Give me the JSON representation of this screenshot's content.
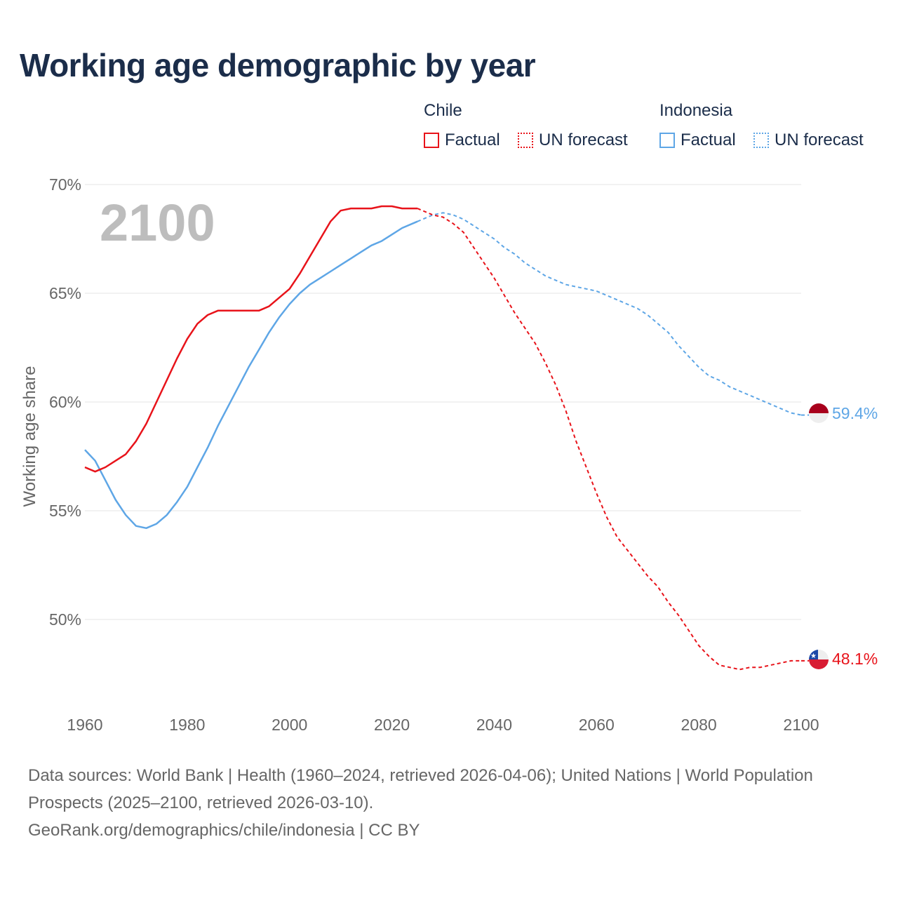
{
  "title": "Working age demographic by year",
  "legend": {
    "groups": [
      {
        "name": "Chile",
        "color": "#e8131a",
        "factual_label": "Factual",
        "forecast_label": "UN forecast"
      },
      {
        "name": "Indonesia",
        "color": "#5ea6e6",
        "factual_label": "Factual",
        "forecast_label": "UN forecast"
      }
    ]
  },
  "sources": {
    "line1": "Data sources: World Bank | Health (1960–2024, retrieved 2026-04-06); United Nations | World Population Prospects (2025–2100, retrieved 2026-03-10).",
    "line2": "GeoRank.org/demographics/chile/indonesia | CC BY"
  },
  "chart_data": {
    "type": "line",
    "title": "Working age demographic by year",
    "ylabel": "Working age share",
    "xlabel": "",
    "overlay_year": "2100",
    "xlim": [
      1960,
      2100
    ],
    "ylim": [
      46,
      70
    ],
    "x_ticks": [
      1960,
      1980,
      2000,
      2020,
      2040,
      2060,
      2080,
      2100
    ],
    "x_tick_labels": [
      "1960",
      "1980",
      "2000",
      "2020",
      "2040",
      "2060",
      "2080",
      "2100"
    ],
    "y_ticks": [
      50,
      55,
      60,
      65,
      70
    ],
    "y_tick_labels": [
      "50%",
      "55%",
      "60%",
      "65%",
      "70%"
    ],
    "factual_end_year": 2025,
    "series": [
      {
        "name": "Chile",
        "color": "#e8131a",
        "end_label": "48.1%",
        "flag": "chile",
        "points": [
          [
            1960,
            57.0
          ],
          [
            1962,
            56.8
          ],
          [
            1964,
            57.0
          ],
          [
            1966,
            57.3
          ],
          [
            1968,
            57.6
          ],
          [
            1970,
            58.2
          ],
          [
            1972,
            59.0
          ],
          [
            1974,
            60.0
          ],
          [
            1976,
            61.0
          ],
          [
            1978,
            62.0
          ],
          [
            1980,
            62.9
          ],
          [
            1982,
            63.6
          ],
          [
            1984,
            64.0
          ],
          [
            1986,
            64.2
          ],
          [
            1988,
            64.2
          ],
          [
            1990,
            64.2
          ],
          [
            1992,
            64.2
          ],
          [
            1994,
            64.2
          ],
          [
            1996,
            64.4
          ],
          [
            1998,
            64.8
          ],
          [
            2000,
            65.2
          ],
          [
            2002,
            65.9
          ],
          [
            2004,
            66.7
          ],
          [
            2006,
            67.5
          ],
          [
            2008,
            68.3
          ],
          [
            2010,
            68.8
          ],
          [
            2012,
            68.9
          ],
          [
            2014,
            68.9
          ],
          [
            2016,
            68.9
          ],
          [
            2018,
            69.0
          ],
          [
            2020,
            69.0
          ],
          [
            2022,
            68.9
          ],
          [
            2025,
            68.9
          ],
          [
            2028,
            68.6
          ],
          [
            2030,
            68.5
          ],
          [
            2032,
            68.2
          ],
          [
            2034,
            67.8
          ],
          [
            2036,
            67.1
          ],
          [
            2038,
            66.4
          ],
          [
            2040,
            65.7
          ],
          [
            2042,
            64.9
          ],
          [
            2044,
            64.1
          ],
          [
            2046,
            63.4
          ],
          [
            2048,
            62.7
          ],
          [
            2050,
            61.8
          ],
          [
            2052,
            60.8
          ],
          [
            2054,
            59.6
          ],
          [
            2056,
            58.2
          ],
          [
            2058,
            57.0
          ],
          [
            2060,
            55.8
          ],
          [
            2062,
            54.7
          ],
          [
            2064,
            53.8
          ],
          [
            2066,
            53.2
          ],
          [
            2068,
            52.6
          ],
          [
            2070,
            52.0
          ],
          [
            2072,
            51.5
          ],
          [
            2074,
            50.8
          ],
          [
            2076,
            50.2
          ],
          [
            2078,
            49.5
          ],
          [
            2080,
            48.8
          ],
          [
            2082,
            48.3
          ],
          [
            2084,
            47.9
          ],
          [
            2086,
            47.8
          ],
          [
            2088,
            47.7
          ],
          [
            2090,
            47.8
          ],
          [
            2092,
            47.8
          ],
          [
            2094,
            47.9
          ],
          [
            2096,
            48.0
          ],
          [
            2098,
            48.1
          ],
          [
            2100,
            48.1
          ]
        ]
      },
      {
        "name": "Indonesia",
        "color": "#5ea6e6",
        "end_label": "59.4%",
        "flag": "indonesia",
        "points": [
          [
            1960,
            57.8
          ],
          [
            1962,
            57.3
          ],
          [
            1964,
            56.4
          ],
          [
            1966,
            55.5
          ],
          [
            1968,
            54.8
          ],
          [
            1970,
            54.3
          ],
          [
            1972,
            54.2
          ],
          [
            1974,
            54.4
          ],
          [
            1976,
            54.8
          ],
          [
            1978,
            55.4
          ],
          [
            1980,
            56.1
          ],
          [
            1982,
            57.0
          ],
          [
            1984,
            57.9
          ],
          [
            1986,
            58.9
          ],
          [
            1988,
            59.8
          ],
          [
            1990,
            60.7
          ],
          [
            1992,
            61.6
          ],
          [
            1994,
            62.4
          ],
          [
            1996,
            63.2
          ],
          [
            1998,
            63.9
          ],
          [
            2000,
            64.5
          ],
          [
            2002,
            65.0
          ],
          [
            2004,
            65.4
          ],
          [
            2006,
            65.7
          ],
          [
            2008,
            66.0
          ],
          [
            2010,
            66.3
          ],
          [
            2012,
            66.6
          ],
          [
            2014,
            66.9
          ],
          [
            2016,
            67.2
          ],
          [
            2018,
            67.4
          ],
          [
            2020,
            67.7
          ],
          [
            2022,
            68.0
          ],
          [
            2025,
            68.3
          ],
          [
            2028,
            68.6
          ],
          [
            2030,
            68.7
          ],
          [
            2032,
            68.6
          ],
          [
            2034,
            68.4
          ],
          [
            2036,
            68.1
          ],
          [
            2038,
            67.8
          ],
          [
            2040,
            67.5
          ],
          [
            2042,
            67.1
          ],
          [
            2044,
            66.8
          ],
          [
            2046,
            66.4
          ],
          [
            2048,
            66.1
          ],
          [
            2050,
            65.8
          ],
          [
            2052,
            65.6
          ],
          [
            2054,
            65.4
          ],
          [
            2056,
            65.3
          ],
          [
            2058,
            65.2
          ],
          [
            2060,
            65.1
          ],
          [
            2062,
            64.9
          ],
          [
            2064,
            64.7
          ],
          [
            2066,
            64.5
          ],
          [
            2068,
            64.3
          ],
          [
            2070,
            64.0
          ],
          [
            2072,
            63.6
          ],
          [
            2074,
            63.2
          ],
          [
            2076,
            62.6
          ],
          [
            2078,
            62.1
          ],
          [
            2080,
            61.6
          ],
          [
            2082,
            61.2
          ],
          [
            2084,
            61.0
          ],
          [
            2086,
            60.7
          ],
          [
            2088,
            60.5
          ],
          [
            2090,
            60.3
          ],
          [
            2092,
            60.1
          ],
          [
            2094,
            59.9
          ],
          [
            2096,
            59.7
          ],
          [
            2098,
            59.5
          ],
          [
            2100,
            59.4
          ]
        ]
      }
    ]
  }
}
